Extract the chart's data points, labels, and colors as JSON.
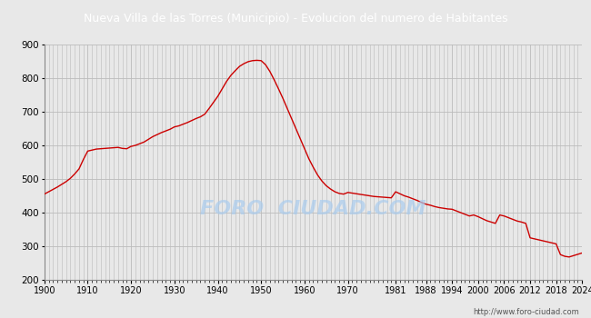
{
  "title": "Nueva Villa de las Torres (Municipio) - Evolucion del numero de Habitantes",
  "title_bg_color": "#4d7cc7",
  "title_text_color": "#ffffff",
  "line_color": "#cc0000",
  "bg_color": "#e8e8e8",
  "plot_bg_color": "#e8e8e8",
  "grid_color": "#bbbbbb",
  "watermark": "FORO  CIUDAD.COM",
  "url": "http://www.foro-ciudad.com",
  "ylim": [
    200,
    900
  ],
  "yticks": [
    200,
    300,
    400,
    500,
    600,
    700,
    800,
    900
  ],
  "xtick_labels": [
    "1900",
    "1910",
    "1920",
    "1930",
    "1940",
    "1950",
    "1960",
    "1970",
    "1981",
    "1988",
    "1994",
    "2000",
    "2006",
    "2012",
    "2018",
    "2024"
  ],
  "data": [
    [
      1900,
      455
    ],
    [
      1901,
      462
    ],
    [
      1902,
      469
    ],
    [
      1903,
      476
    ],
    [
      1904,
      484
    ],
    [
      1905,
      492
    ],
    [
      1906,
      502
    ],
    [
      1907,
      515
    ],
    [
      1908,
      530
    ],
    [
      1909,
      558
    ],
    [
      1910,
      583
    ],
    [
      1911,
      586
    ],
    [
      1912,
      589
    ],
    [
      1913,
      590
    ],
    [
      1914,
      591
    ],
    [
      1915,
      592
    ],
    [
      1916,
      593
    ],
    [
      1917,
      594
    ],
    [
      1918,
      591
    ],
    [
      1919,
      590
    ],
    [
      1920,
      597
    ],
    [
      1921,
      600
    ],
    [
      1922,
      605
    ],
    [
      1923,
      610
    ],
    [
      1924,
      618
    ],
    [
      1925,
      626
    ],
    [
      1926,
      632
    ],
    [
      1927,
      638
    ],
    [
      1928,
      643
    ],
    [
      1929,
      648
    ],
    [
      1930,
      655
    ],
    [
      1931,
      658
    ],
    [
      1932,
      663
    ],
    [
      1933,
      668
    ],
    [
      1934,
      674
    ],
    [
      1935,
      680
    ],
    [
      1936,
      685
    ],
    [
      1937,
      693
    ],
    [
      1938,
      710
    ],
    [
      1939,
      728
    ],
    [
      1940,
      746
    ],
    [
      1941,
      768
    ],
    [
      1942,
      790
    ],
    [
      1943,
      808
    ],
    [
      1944,
      822
    ],
    [
      1945,
      835
    ],
    [
      1946,
      843
    ],
    [
      1947,
      849
    ],
    [
      1948,
      852
    ],
    [
      1949,
      853
    ],
    [
      1950,
      852
    ],
    [
      1951,
      840
    ],
    [
      1952,
      820
    ],
    [
      1953,
      795
    ],
    [
      1954,
      768
    ],
    [
      1955,
      740
    ],
    [
      1956,
      710
    ],
    [
      1957,
      680
    ],
    [
      1958,
      650
    ],
    [
      1959,
      620
    ],
    [
      1960,
      590
    ],
    [
      1961,
      560
    ],
    [
      1962,
      535
    ],
    [
      1963,
      512
    ],
    [
      1964,
      494
    ],
    [
      1965,
      480
    ],
    [
      1966,
      470
    ],
    [
      1967,
      462
    ],
    [
      1968,
      457
    ],
    [
      1969,
      455
    ],
    [
      1970,
      460
    ],
    [
      1971,
      458
    ],
    [
      1972,
      456
    ],
    [
      1973,
      454
    ],
    [
      1974,
      452
    ],
    [
      1975,
      450
    ],
    [
      1976,
      448
    ],
    [
      1977,
      447
    ],
    [
      1978,
      446
    ],
    [
      1979,
      445
    ],
    [
      1980,
      444
    ],
    [
      1981,
      462
    ],
    [
      1982,
      456
    ],
    [
      1983,
      450
    ],
    [
      1984,
      446
    ],
    [
      1985,
      441
    ],
    [
      1986,
      436
    ],
    [
      1987,
      430
    ],
    [
      1988,
      425
    ],
    [
      1989,
      422
    ],
    [
      1990,
      418
    ],
    [
      1991,
      415
    ],
    [
      1992,
      413
    ],
    [
      1993,
      411
    ],
    [
      1994,
      410
    ],
    [
      1995,
      405
    ],
    [
      1996,
      400
    ],
    [
      1997,
      395
    ],
    [
      1998,
      390
    ],
    [
      1999,
      393
    ],
    [
      2000,
      388
    ],
    [
      2001,
      382
    ],
    [
      2002,
      376
    ],
    [
      2003,
      372
    ],
    [
      2004,
      368
    ],
    [
      2005,
      393
    ],
    [
      2006,
      390
    ],
    [
      2007,
      385
    ],
    [
      2008,
      380
    ],
    [
      2009,
      375
    ],
    [
      2010,
      372
    ],
    [
      2011,
      368
    ],
    [
      2012,
      325
    ],
    [
      2013,
      322
    ],
    [
      2014,
      319
    ],
    [
      2015,
      316
    ],
    [
      2016,
      313
    ],
    [
      2017,
      310
    ],
    [
      2018,
      307
    ],
    [
      2019,
      275
    ],
    [
      2020,
      270
    ],
    [
      2021,
      268
    ],
    [
      2022,
      272
    ],
    [
      2023,
      276
    ],
    [
      2024,
      280
    ]
  ]
}
